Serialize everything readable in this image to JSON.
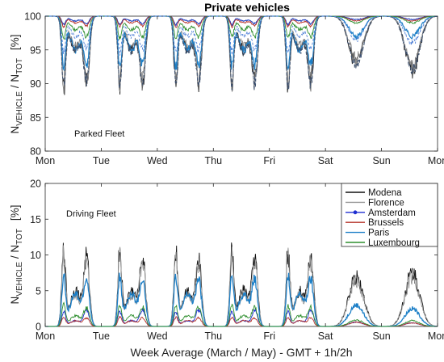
{
  "chart_data": [
    {
      "type": "line",
      "title": "Private vehicles",
      "xlabel": "",
      "ylabel": "N_VEHICLE / N_TOT   [%]",
      "ylabel_main": "N",
      "ylabel_sub1": "VEHICLE",
      "ylabel_mid": " / N",
      "ylabel_sub2": "TOT",
      "ylabel_unit": "[%]",
      "xlim": [
        0,
        7
      ],
      "ylim": [
        80,
        100
      ],
      "x_tick_labels": [
        "Mon",
        "Tue",
        "Wed",
        "Thu",
        "Fri",
        "Sat",
        "Sun",
        "Mon"
      ],
      "y_ticks": [
        80,
        85,
        90,
        95,
        100
      ],
      "annotation": "Parked Fleet",
      "grid": false,
      "series_style": [
        {
          "color": "#222222",
          "dash": "",
          "width": 0.9
        },
        {
          "color": "#8a8a8a",
          "dash": "",
          "width": 0.9
        },
        {
          "color": "#1f3fbf",
          "dash": "",
          "width": 1.1
        },
        {
          "color": "#b5322a",
          "dash": "",
          "width": 0.9
        },
        {
          "color": "#1c7fc7",
          "dash": "",
          "width": 1.2
        },
        {
          "color": "#2f8f2f",
          "dash": "",
          "width": 0.9
        },
        {
          "color": "#3d5170",
          "dash": "4,2",
          "width": 1.0
        },
        {
          "color": "#4d7fd6",
          "dash": "3,2",
          "width": 0.9
        }
      ],
      "base_values": [
        100,
        100,
        100,
        100,
        100,
        100,
        100,
        100
      ],
      "weekday_dips": [
        {
          "morning": 10.0,
          "midday": 5.0,
          "afternoon": 9.0
        },
        {
          "morning": 9.5,
          "midday": 4.5,
          "afternoon": 9.0
        },
        {
          "morning": 1.2,
          "midday": 0.7,
          "afternoon": 1.0
        },
        {
          "morning": 1.5,
          "midday": 1.0,
          "afternoon": 1.3
        },
        {
          "morning": 7.0,
          "midday": 5.0,
          "afternoon": 6.5
        },
        {
          "morning": 3.0,
          "midday": 2.0,
          "afternoon": 2.8
        },
        {
          "morning": 9.8,
          "midday": 5.2,
          "afternoon": 9.2
        },
        {
          "morning": 5.0,
          "midday": 3.0,
          "afternoon": 4.5
        }
      ],
      "weekend_dips": [
        {
          "sat": 7.0,
          "sun": 8.0
        },
        {
          "sat": 6.5,
          "sun": 7.5
        },
        {
          "sat": 0.5,
          "sun": 0.5
        },
        {
          "sat": 0.7,
          "sun": 0.7
        },
        {
          "sat": 3.0,
          "sun": 3.0
        },
        {
          "sat": 1.0,
          "sun": 1.0
        },
        {
          "sat": 7.0,
          "sun": 8.0
        },
        {
          "sat": 3.5,
          "sun": 4.0
        }
      ]
    },
    {
      "type": "line",
      "title": "",
      "xlabel": "Week Average (March / May) - GMT + 1h/2h",
      "ylabel": "N_VEHICLE / N_TOT   [%]",
      "ylabel_main": "N",
      "ylabel_sub1": "VEHICLE",
      "ylabel_mid": " / N",
      "ylabel_sub2": "TOT",
      "ylabel_unit": "[%]",
      "xlim": [
        0,
        7
      ],
      "ylim": [
        0,
        20
      ],
      "x_tick_labels": [
        "Mon",
        "Tue",
        "Wed",
        "Thu",
        "Fri",
        "Sat",
        "Sun",
        "Mon"
      ],
      "y_ticks": [
        0,
        5,
        10,
        15,
        20
      ],
      "annotation": "Driving Fleet",
      "grid": false,
      "legend_position": "top-right",
      "series": [
        {
          "name": "Modena",
          "color": "#111111",
          "marker": "none",
          "weekday": {
            "morning": 10.0,
            "midday": 5.0,
            "afternoon": 9.0
          },
          "weekend": {
            "sat": 7.0,
            "sun": 7.5
          }
        },
        {
          "name": "Florence",
          "color": "#9a9a9a",
          "marker": "none",
          "weekday": {
            "morning": 9.5,
            "midday": 4.5,
            "afternoon": 8.5
          },
          "weekend": {
            "sat": 6.5,
            "sun": 7.0
          }
        },
        {
          "name": "Amsterdam",
          "color": "#1f2fd1",
          "marker": "dot",
          "weekday": {
            "morning": 2.0,
            "midday": 0.8,
            "afternoon": 2.2
          },
          "weekend": {
            "sat": 0.6,
            "sun": 0.5
          }
        },
        {
          "name": "Brussels",
          "color": "#b5322a",
          "marker": "none",
          "weekday": {
            "morning": 1.2,
            "midday": 0.8,
            "afternoon": 1.1
          },
          "weekend": {
            "sat": 0.6,
            "sun": 0.5
          }
        },
        {
          "name": "Paris",
          "color": "#1c7fc7",
          "marker": "none",
          "weekday": {
            "morning": 6.5,
            "midday": 4.5,
            "afternoon": 6.0
          },
          "weekend": {
            "sat": 3.0,
            "sun": 2.5
          }
        },
        {
          "name": "Luxembourg",
          "color": "#2f8f2f",
          "marker": "none",
          "weekday": {
            "morning": 2.8,
            "midday": 1.5,
            "afternoon": 2.5
          },
          "weekend": {
            "sat": 0.9,
            "sun": 0.8
          }
        }
      ]
    }
  ]
}
